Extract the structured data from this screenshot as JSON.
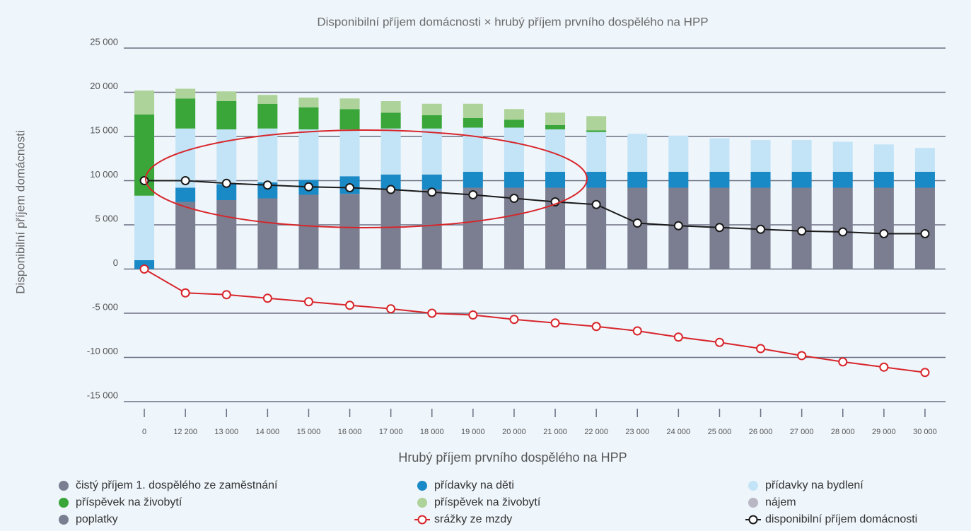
{
  "chart_data": {
    "type": "stacked-bar-line",
    "title": "Disponibilní příjem domácnosti × hrubý příjem prvního dospělého na HPP",
    "x_label": "Hrubý příjem prvního dospělého na HPP",
    "y_label": "Disponibilní příjem domácnosti",
    "categories": [
      "0",
      "12 200",
      "13 000",
      "14 000",
      "15 000",
      "16 000",
      "17 000",
      "18 000",
      "19 000",
      "20 000",
      "21 000",
      "22 000",
      "23 000",
      "24 000",
      "25 000",
      "26 000",
      "27 000",
      "28 000",
      "29 000",
      "30 000"
    ],
    "ylim": [
      -15000,
      25000
    ],
    "yticks": [
      {
        "value": -15000,
        "label": "-15 000"
      },
      {
        "value": -10000,
        "label": "-10 000"
      },
      {
        "value": -5000,
        "label": "-5 000"
      },
      0,
      {
        "value": 5000,
        "label": "5 000"
      },
      {
        "value": 10000,
        "label": "10 000"
      },
      {
        "value": 15000,
        "label": "15 000"
      },
      {
        "value": 20000,
        "label": "20 000"
      },
      {
        "value": 25000,
        "label": "25 000"
      }
    ],
    "grid": true,
    "series": [
      {
        "name": "čistý příjem 1. dospělého ze zaměstnání",
        "type": "bar",
        "color": "#7b7e90",
        "values": [
          0,
          7600,
          7800,
          8000,
          8400,
          8500,
          9000,
          9000,
          9200,
          9200,
          9200,
          9200,
          9200,
          9200,
          9200,
          9200,
          9200,
          9200,
          9200,
          9200
        ]
      },
      {
        "name": "přídavky na děti",
        "type": "bar",
        "color": "#1a8ac6",
        "values": [
          1000,
          1600,
          1800,
          1800,
          1700,
          2000,
          1700,
          1700,
          1800,
          1800,
          1800,
          1800,
          1800,
          1800,
          1800,
          1800,
          1800,
          1800,
          1800,
          1800
        ]
      },
      {
        "name": "přídavky na bydlení",
        "type": "bar",
        "color": "#c3e4f6",
        "values": [
          7300,
          6700,
          6200,
          6100,
          5700,
          5300,
          5200,
          5200,
          5000,
          5000,
          4800,
          4500,
          4300,
          4100,
          3800,
          3600,
          3600,
          3400,
          3100,
          2700
        ]
      },
      {
        "name": "příspěvek na živobytí",
        "type": "bar",
        "color": "#3aa63a",
        "values": [
          9200,
          3400,
          3200,
          2800,
          2500,
          2300,
          1800,
          1500,
          1100,
          900,
          500,
          200,
          0,
          0,
          0,
          0,
          0,
          0,
          0,
          0
        ]
      },
      {
        "name": "příspěvek na živobytí",
        "type": "bar",
        "color": "#aed39a",
        "values": [
          2700,
          1100,
          1100,
          1000,
          1100,
          1200,
          1300,
          1300,
          1600,
          1200,
          1400,
          1600,
          0,
          0,
          0,
          0,
          0,
          0,
          0,
          0
        ]
      },
      {
        "name": "nájem",
        "type": "bar",
        "color": "#b9b7c4",
        "values": [
          0,
          0,
          0,
          0,
          0,
          0,
          0,
          0,
          0,
          0,
          0,
          0,
          0,
          0,
          0,
          0,
          0,
          0,
          0,
          0
        ]
      },
      {
        "name": "poplatky",
        "type": "bar",
        "color": "#7b7e90",
        "values": [
          0,
          0,
          0,
          0,
          0,
          0,
          0,
          0,
          0,
          0,
          0,
          0,
          0,
          0,
          0,
          0,
          0,
          0,
          0,
          0
        ]
      },
      {
        "name": "srážky ze mzdy",
        "type": "line",
        "color": "#d7262b",
        "values": [
          0,
          -2700,
          -2900,
          -3300,
          -3700,
          -4100,
          -4500,
          -5000,
          -5200,
          -5700,
          -6100,
          -6500,
          -7000,
          -7700,
          -8300,
          -9000,
          -9800,
          -10500,
          -11100,
          -11700
        ]
      },
      {
        "name": "disponibilní příjem domácnosti",
        "type": "line",
        "color": "#1a1a1a",
        "values": [
          10000,
          10000,
          9700,
          9500,
          9300,
          9200,
          9000,
          8700,
          8400,
          8000,
          7600,
          7300,
          5200,
          4900,
          4700,
          4500,
          4300,
          4200,
          4000,
          4000
        ]
      }
    ]
  }
}
